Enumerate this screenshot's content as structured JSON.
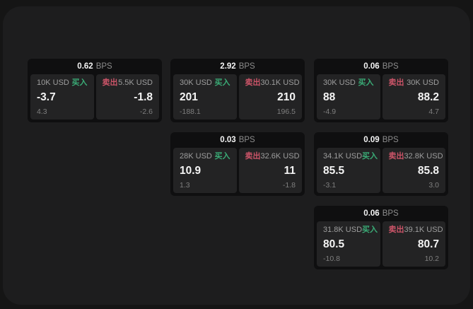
{
  "labels": {
    "bps": "BPS",
    "buy": "买入",
    "sell": "卖出"
  },
  "colors": {
    "page_bg": "#151515",
    "window_bg": "#1d1d1e",
    "card_bg": "#0f0f10",
    "tile_bg": "#232324",
    "buy_green": "#3aab76",
    "sell_red": "#cb5468"
  },
  "cards": [
    {
      "bps": "0.62",
      "buy": {
        "amount": "10K USD",
        "value": "-3.7",
        "delta": "4.3"
      },
      "sell": {
        "amount": "5.5K USD",
        "value": "-1.8",
        "delta": "-2.6"
      }
    },
    {
      "bps": "2.92",
      "buy": {
        "amount": "30K USD",
        "value": "201",
        "delta": "-188.1"
      },
      "sell": {
        "amount": "30.1K USD",
        "value": "210",
        "delta": "196.5"
      }
    },
    {
      "bps": "0.06",
      "buy": {
        "amount": "30K USD",
        "value": "88",
        "delta": "-4.9"
      },
      "sell": {
        "amount": "30K USD",
        "value": "88.2",
        "delta": "4.7"
      }
    },
    {
      "bps": "0.03",
      "buy": {
        "amount": "28K USD",
        "value": "10.9",
        "delta": "1.3"
      },
      "sell": {
        "amount": "32.6K USD",
        "value": "11",
        "delta": "-1.8"
      }
    },
    {
      "bps": "0.09",
      "buy": {
        "amount": "34.1K USD",
        "value": "85.5",
        "delta": "-3.1"
      },
      "sell": {
        "amount": "32.8K USD",
        "value": "85.8",
        "delta": "3.0"
      }
    },
    {
      "bps": "0.06",
      "buy": {
        "amount": "31.8K USD",
        "value": "80.5",
        "delta": "-10.8"
      },
      "sell": {
        "amount": "39.1K USD",
        "value": "80.7",
        "delta": "10.2"
      }
    }
  ]
}
